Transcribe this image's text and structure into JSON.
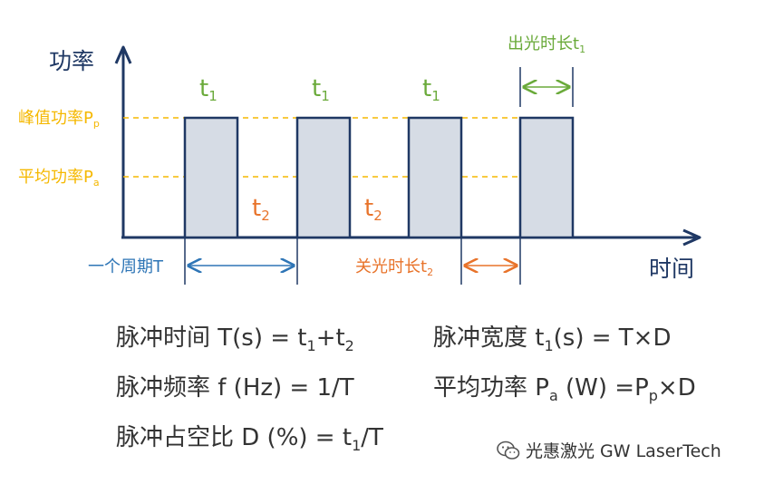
{
  "diagram": {
    "y_axis_label": "功率",
    "x_axis_label": "时间",
    "peak_label": "峰值功率P",
    "peak_label_sub": "p",
    "avg_label": "平均功率P",
    "avg_label_sub": "a",
    "on_label": "t",
    "on_label_sub": "1",
    "off_label": "t",
    "off_label_sub": "2",
    "on_duration_label": "出光时长t",
    "on_duration_sub": "1",
    "off_duration_label": "关光时长t",
    "off_duration_sub": "2",
    "period_label": "一个周期T",
    "colors": {
      "axis": "#1f3864",
      "peak_avg": "#f5b800",
      "on_time": "#6aaa3a",
      "off_time": "#e8732a",
      "period": "#2e75b6",
      "pulse_fill": "#d6dce5",
      "pulse_stroke": "#1f3864"
    }
  },
  "formulas": {
    "pulse_time": {
      "prefix": "脉冲时间 T(s) =  t",
      "sub1": "1",
      "mid": "+t",
      "sub2": "2"
    },
    "pulse_width": {
      "prefix": "脉冲宽度 t",
      "sub1": "1",
      "rest": "(s) = T×D"
    },
    "pulse_freq": {
      "text": "脉冲频率 f (Hz) = 1/T"
    },
    "avg_power": {
      "prefix": "平均功率 P",
      "sub1": "a",
      "mid": " (W) =P",
      "sub2": "p",
      "rest": "×D"
    },
    "duty_cycle": {
      "prefix": "脉冲占空比 D (%) = t",
      "sub1": "1",
      "rest": "/T"
    }
  },
  "watermark": {
    "text": "光惠激光 GW LaserTech",
    "icon": "wechat-icon"
  }
}
